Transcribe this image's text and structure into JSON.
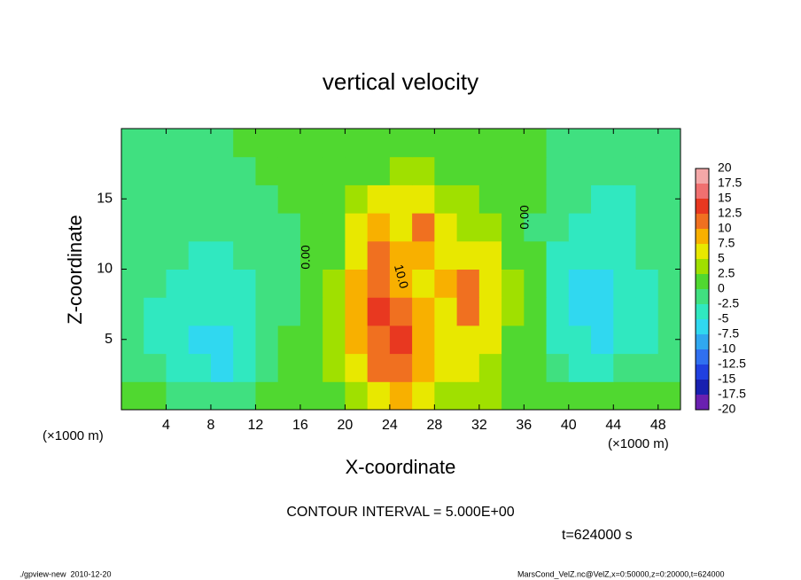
{
  "chart_data": {
    "type": "contour",
    "title": "vertical velocity",
    "x_label": "X-coordinate",
    "y_label": "Z-coordinate",
    "x_unit": "(×1000 m)",
    "y_unit": "(×1000 m)",
    "xlim": [
      0,
      50
    ],
    "ylim": [
      0,
      20
    ],
    "xticks": [
      4,
      8,
      12,
      16,
      20,
      24,
      28,
      32,
      36,
      40,
      44,
      48
    ],
    "yticks": [
      5,
      10,
      15
    ],
    "x": [
      1,
      3,
      5,
      7,
      9,
      11,
      13,
      15,
      17,
      19,
      21,
      23,
      25,
      27,
      29,
      31,
      33,
      35,
      37,
      39,
      41,
      43,
      45,
      47,
      49
    ],
    "z": [
      1,
      3,
      5,
      7,
      9,
      11,
      13,
      15,
      17,
      19
    ],
    "z_values": [
      [
        0,
        0,
        -1,
        -2,
        -2,
        -1,
        0,
        1,
        1,
        2,
        4,
        6,
        8,
        6,
        4,
        4,
        3,
        2,
        1,
        1,
        2,
        1,
        1,
        1,
        0
      ],
      [
        -1,
        -2,
        -3,
        -5,
        -6,
        -3,
        -1,
        0,
        1,
        3,
        6,
        10,
        11,
        8,
        5,
        5,
        4,
        2,
        1,
        -1,
        -3,
        -3,
        -2,
        -1,
        -1
      ],
      [
        -2,
        -3,
        -5,
        -6,
        -7,
        -4,
        -2,
        0,
        1,
        3,
        8,
        12,
        13,
        9,
        6,
        7,
        5,
        2,
        0,
        -3,
        -5,
        -6,
        -5,
        -3,
        -2
      ],
      [
        -2,
        -3,
        -5,
        -5,
        -5,
        -4,
        -2,
        -1,
        0,
        3,
        9,
        13,
        12,
        8,
        7,
        11,
        7,
        3,
        0,
        -3,
        -6,
        -7,
        -5,
        -3,
        -2
      ],
      [
        -1,
        -2,
        -3,
        -4,
        -4,
        -3,
        -2,
        -1,
        0,
        3,
        9,
        12,
        9,
        6,
        8,
        11,
        7,
        3,
        0,
        -4,
        -7,
        -6,
        -4,
        -3,
        -1
      ],
      [
        -1,
        -1,
        -2,
        -3,
        -3,
        -2,
        -1,
        -1,
        0,
        2,
        7,
        10,
        8,
        9,
        6,
        7,
        5,
        2,
        0,
        -3,
        -5,
        -5,
        -3,
        -2,
        -1
      ],
      [
        -1,
        -1,
        -1,
        -2,
        -2,
        -1,
        -1,
        -1,
        0,
        2,
        5,
        9,
        7,
        10,
        5,
        4,
        3,
        1,
        -1,
        -2,
        -4,
        -4,
        -3,
        -2,
        -1
      ],
      [
        -1,
        -1,
        -1,
        -1,
        -1,
        -1,
        -1,
        0,
        0,
        1,
        3,
        5,
        5,
        5,
        4,
        3,
        2,
        1,
        0,
        -1,
        -2,
        -3,
        -3,
        -2,
        -1
      ],
      [
        -1,
        -1,
        -1,
        -1,
        -1,
        -1,
        0,
        0,
        0,
        1,
        1,
        2,
        3,
        3,
        2,
        1,
        1,
        0,
        0,
        -1,
        -1,
        -1,
        -1,
        -1,
        -1
      ],
      [
        -1,
        -1,
        -1,
        -1,
        -1,
        0,
        0,
        0,
        0,
        0,
        1,
        1,
        1,
        1,
        1,
        1,
        0,
        0,
        0,
        -1,
        -1,
        -1,
        -1,
        -1,
        -1
      ]
    ],
    "colorbar": {
      "levels": [
        -20,
        -17.5,
        -15,
        -12.5,
        -10,
        -7.5,
        -5,
        -2.5,
        0,
        2.5,
        5,
        7.5,
        10,
        12.5,
        15,
        17.5,
        20
      ],
      "colors": [
        "#6a20b0",
        "#1820b0",
        "#2040e0",
        "#3070f0",
        "#30a8f0",
        "#30d8f0",
        "#30e8c0",
        "#40e080",
        "#50d830",
        "#a0e000",
        "#e8e800",
        "#f8b000",
        "#f07020",
        "#e83820",
        "#f07070",
        "#f4a8a8"
      ]
    },
    "contour_labels": [
      "0.00",
      "10.0",
      "0.00"
    ],
    "contour_interval": "CONTOUR INTERVAL = 5.000E+00",
    "time_label": "t=624000 s",
    "footer_left": "./gpview-new  2010-12-20",
    "footer_right": "MarsCond_VelZ.nc@VelZ,x=0:50000,z=0:20000,t=624000"
  }
}
